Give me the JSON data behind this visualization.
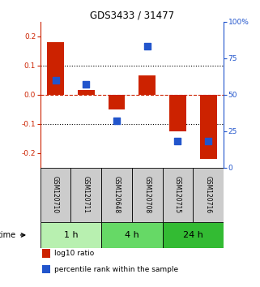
{
  "title": "GDS3433 / 31477",
  "samples": [
    "GSM120710",
    "GSM120711",
    "GSM120648",
    "GSM120708",
    "GSM120715",
    "GSM120716"
  ],
  "log10_ratio": [
    0.18,
    0.015,
    -0.05,
    0.065,
    -0.125,
    -0.222
  ],
  "percentile_rank": [
    60,
    57,
    32,
    83,
    18,
    18
  ],
  "time_groups": [
    {
      "label": "1 h",
      "start": 0,
      "end": 2,
      "color": "#b8f0b0"
    },
    {
      "label": "4 h",
      "start": 2,
      "end": 4,
      "color": "#66d966"
    },
    {
      "label": "24 h",
      "start": 4,
      "end": 6,
      "color": "#33bb33"
    }
  ],
  "bar_color": "#cc2200",
  "dot_color": "#2255cc",
  "left_ylim": [
    -0.25,
    0.25
  ],
  "right_ylim": [
    0,
    100
  ],
  "left_yticks": [
    -0.2,
    -0.1,
    0.0,
    0.1,
    0.2
  ],
  "right_yticks": [
    0,
    25,
    50,
    75,
    100
  ],
  "right_yticklabels": [
    "0",
    "25",
    "50",
    "75",
    "100%"
  ],
  "hline_dotted_vals": [
    0.1,
    -0.1
  ],
  "hline_zero_color": "#cc2200",
  "sample_box_color": "#cccccc",
  "background_color": "#ffffff",
  "legend_items": [
    {
      "label": "log10 ratio",
      "color": "#cc2200"
    },
    {
      "label": "percentile rank within the sample",
      "color": "#2255cc"
    }
  ],
  "time_label": "time",
  "bar_width": 0.55,
  "dot_size": 28
}
